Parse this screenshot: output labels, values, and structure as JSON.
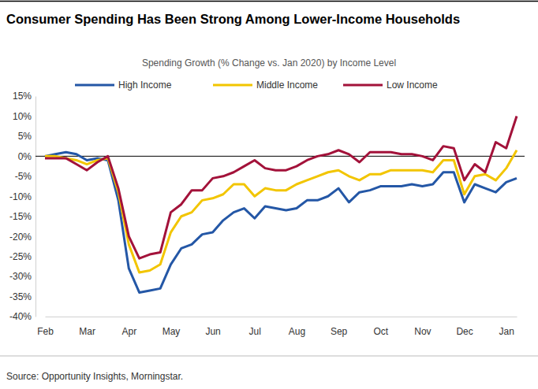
{
  "chart_data": {
    "type": "line",
    "title": "Consumer Spending Has Been Strong Among Lower-Income Households",
    "subtitle": "Spending Growth (% Change vs. Jan 2020) by Income Level",
    "source": "Source: Opportunity Insights, Morningstar.",
    "categories": [
      "Feb",
      null,
      null,
      null,
      "Mar",
      null,
      null,
      null,
      "Apr",
      null,
      null,
      null,
      "May",
      null,
      null,
      null,
      "Jun",
      null,
      null,
      null,
      "Jul",
      null,
      null,
      null,
      "Aug",
      null,
      null,
      null,
      "Sep",
      null,
      null,
      null,
      "Oct",
      null,
      null,
      null,
      "Nov",
      null,
      null,
      null,
      "Dec",
      null,
      null,
      null,
      "Jan",
      null
    ],
    "series": [
      {
        "name": "High Income",
        "color": "#2457a6",
        "values": [
          0,
          0.5,
          1,
          0.5,
          -1,
          -0.5,
          -1,
          -11,
          -28,
          -34,
          -33.5,
          -33,
          -27,
          -23,
          -22,
          -19.5,
          -19,
          -16,
          -14,
          -13,
          -15.5,
          -12.5,
          -13,
          -13.5,
          -13,
          -11,
          -11,
          -10,
          -8,
          -11.5,
          -9,
          -8.5,
          -7.5,
          -7.5,
          -7.5,
          -7,
          -7.5,
          -7,
          -4,
          -4,
          -11.5,
          -7,
          -8,
          -9,
          -6.5,
          -5.5
        ]
      },
      {
        "name": "Middle Income",
        "color": "#f2c500",
        "values": [
          0,
          0,
          -0.5,
          -1,
          -2,
          -1,
          -0.5,
          -9,
          -22,
          -29,
          -28.5,
          -27,
          -19,
          -15,
          -14,
          -11,
          -10.5,
          -9.5,
          -7,
          -7,
          -10,
          -8,
          -8.5,
          -8.5,
          -7,
          -6,
          -5,
          -4,
          -3.5,
          -5,
          -6,
          -4.5,
          -4.5,
          -3.5,
          -3.5,
          -3.5,
          -3.5,
          -4,
          -1,
          -1,
          -9.5,
          -5,
          -4.5,
          -6,
          -3,
          1.5
        ]
      },
      {
        "name": "Low Income",
        "color": "#a3123a",
        "values": [
          -0.5,
          -0.5,
          -0.5,
          -2,
          -3.5,
          -1.5,
          0,
          -8,
          -20,
          -25.5,
          -24.5,
          -24,
          -14,
          -12,
          -8.5,
          -8.5,
          -5.5,
          -5,
          -4,
          -2.5,
          -1,
          -3,
          -3.5,
          -3.5,
          -2.5,
          -1,
          0,
          0.5,
          1.5,
          0.5,
          -1.5,
          1,
          1,
          1,
          0.5,
          0.5,
          0,
          -1,
          2.5,
          2,
          -6,
          -2,
          -4,
          3.5,
          2,
          10
        ]
      }
    ],
    "ylim": [
      -40,
      15
    ],
    "yticks": [
      {
        "value": 15,
        "label": "15%"
      },
      {
        "value": 10,
        "label": "10%"
      },
      {
        "value": 5,
        "label": "5%"
      },
      {
        "value": 0,
        "label": "0%"
      },
      {
        "value": -5,
        "label": "-5%"
      },
      {
        "value": -10,
        "label": "-10%"
      },
      {
        "value": -15,
        "label": "-15%"
      },
      {
        "value": -20,
        "label": "-20%"
      },
      {
        "value": -25,
        "label": "-25%"
      },
      {
        "value": -30,
        "label": "-30%"
      },
      {
        "value": -35,
        "label": "-35%"
      },
      {
        "value": -40,
        "label": "-40%"
      }
    ],
    "grid": false,
    "legend": "top"
  }
}
